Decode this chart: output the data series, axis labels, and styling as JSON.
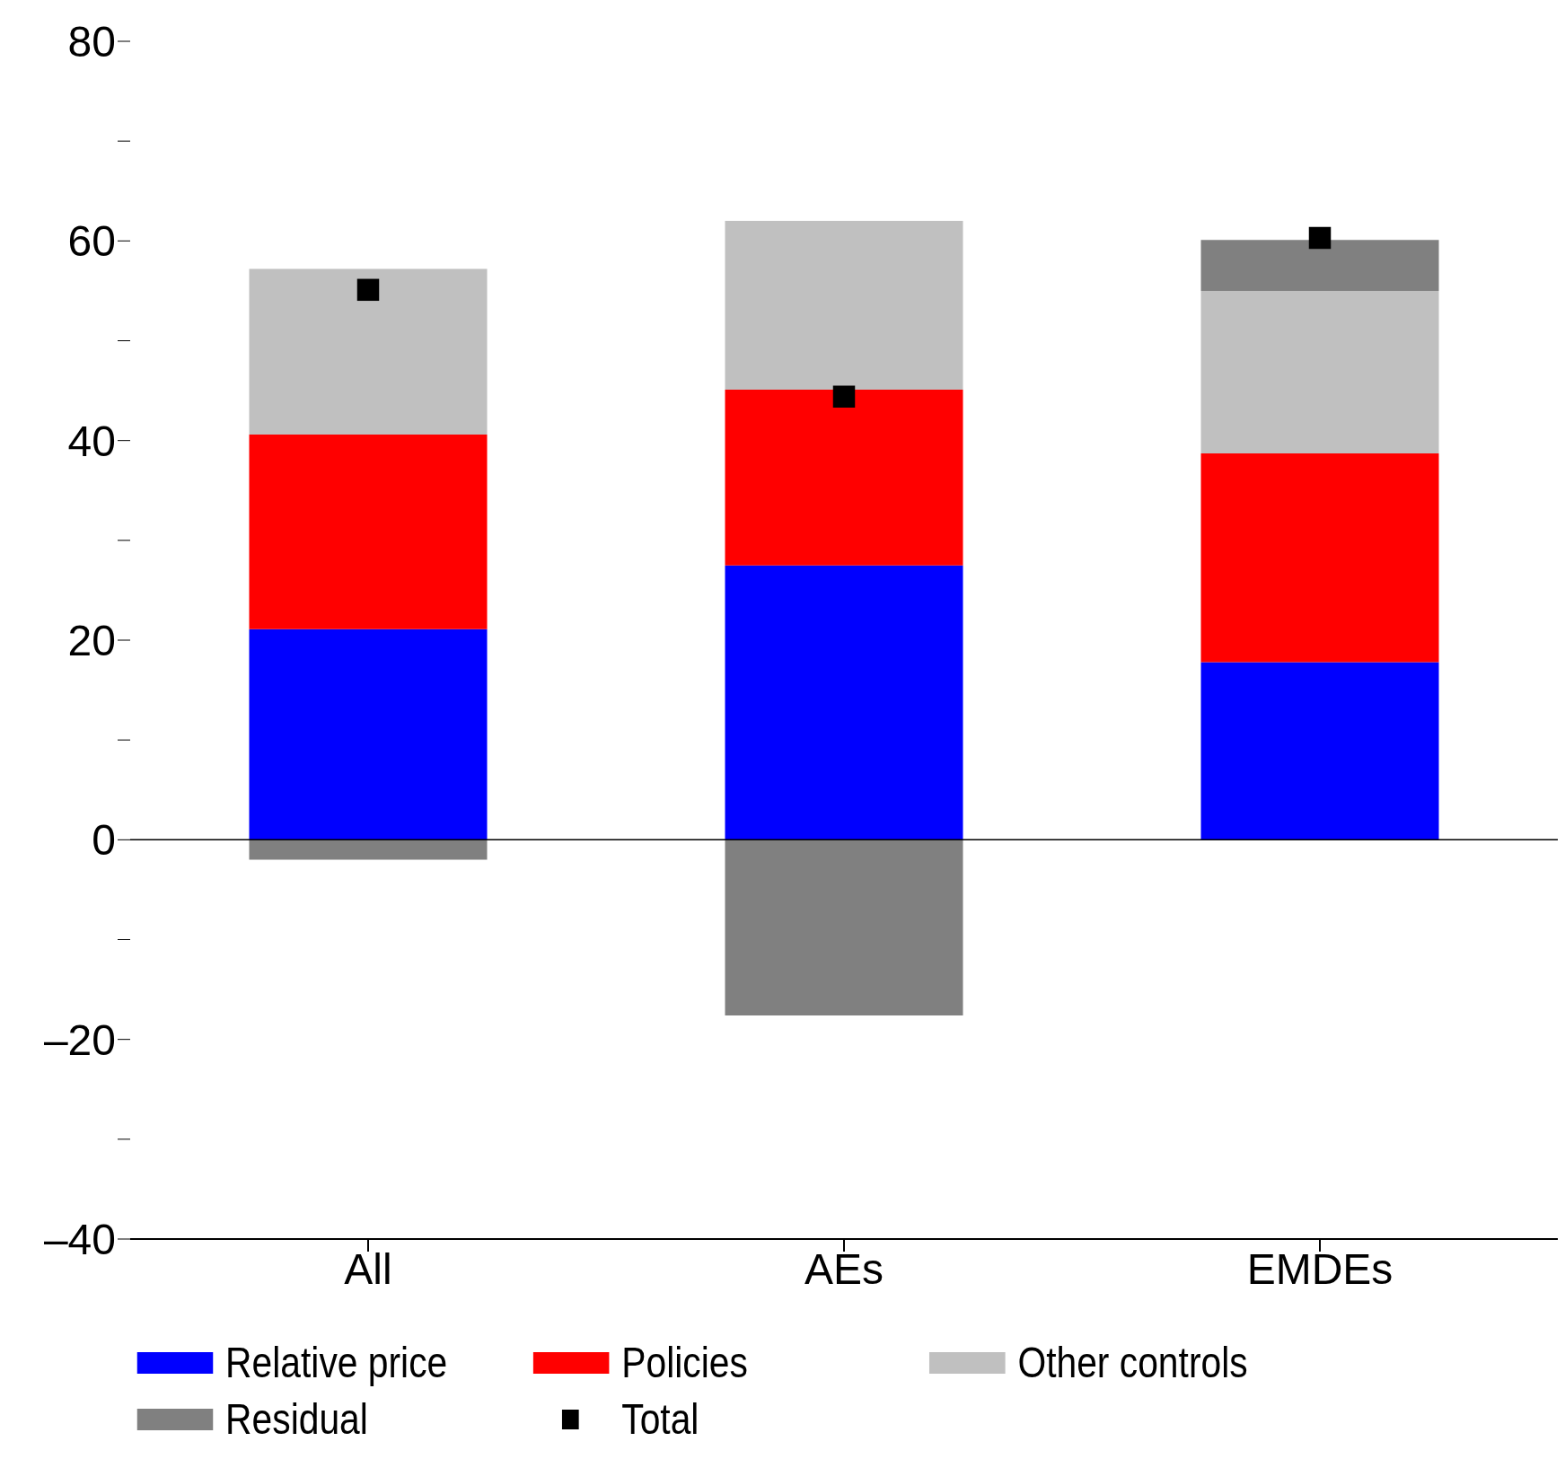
{
  "chart_data": {
    "type": "bar",
    "stacked": true,
    "categories": [
      "All",
      "AEs",
      "EMDEs"
    ],
    "series": [
      {
        "name": "Relative price",
        "color": "#0000ff",
        "values": [
          21.1,
          27.5,
          17.8
        ]
      },
      {
        "name": "Policies",
        "color": "#ff0000",
        "values": [
          19.5,
          17.6,
          20.9
        ]
      },
      {
        "name": "Other controls",
        "color": "#c0c0c0",
        "values": [
          16.6,
          16.9,
          16.3
        ]
      },
      {
        "name": "Residual",
        "color": "#808080",
        "values": [
          -2.0,
          -17.6,
          5.1
        ]
      },
      {
        "name": "Total",
        "type": "scatter",
        "marker": "square",
        "color": "#000000",
        "values": [
          55.1,
          44.4,
          60.3
        ]
      }
    ],
    "ylim": [
      -40,
      80
    ],
    "yticks": [
      {
        "value": -40,
        "label": "–40"
      },
      {
        "value": -30,
        "label": null
      },
      {
        "value": -20,
        "label": "–20"
      },
      {
        "value": -10,
        "label": null
      },
      0,
      {
        "value": 10,
        "label": null
      },
      20,
      {
        "value": 30,
        "label": null
      },
      40,
      {
        "value": 50,
        "label": null
      },
      60,
      {
        "value": 70,
        "label": null
      },
      80
    ],
    "ref_lines": [
      {
        "axis": "y",
        "value": 0,
        "color": "#000000"
      }
    ],
    "grid": false,
    "legend": "bottom"
  }
}
